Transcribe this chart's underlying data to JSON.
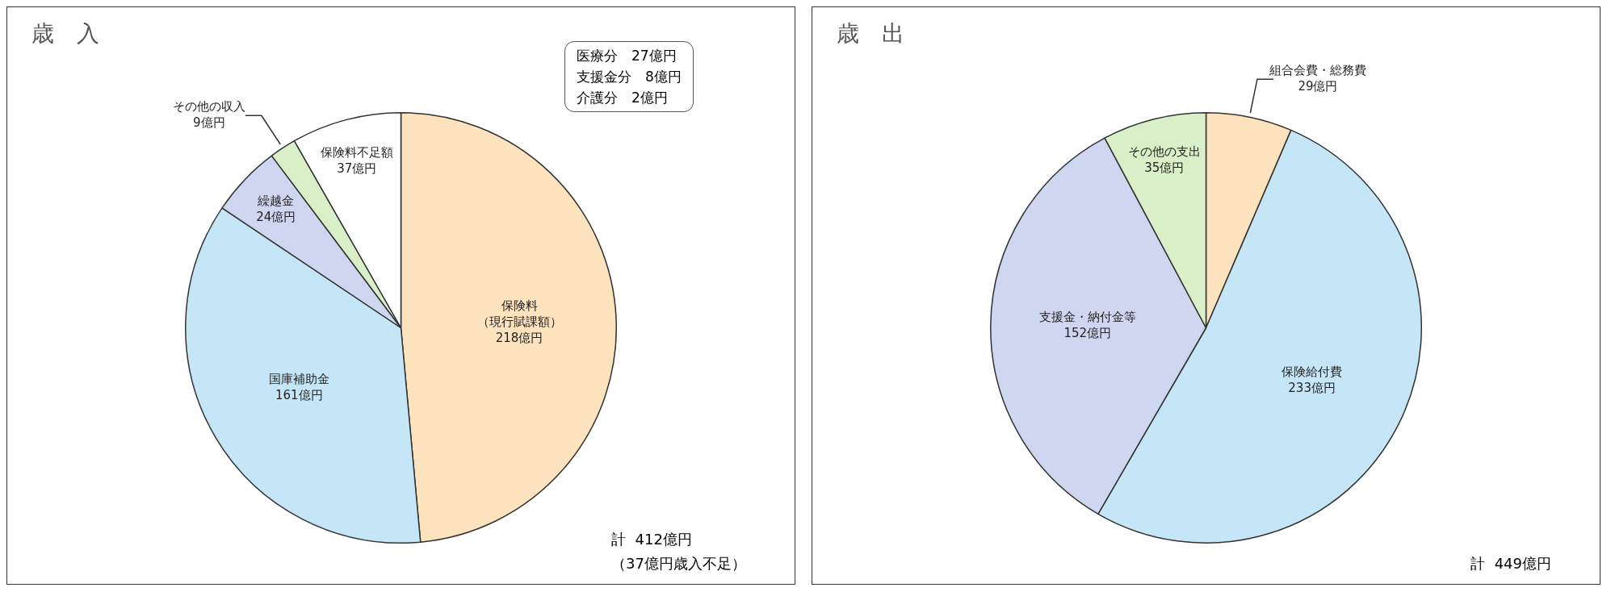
{
  "chart_data": [
    {
      "type": "pie",
      "title": "歳　入",
      "categories": [
        "保険料（現行賦課額）",
        "国庫補助金",
        "繰越金",
        "その他の収入",
        "保険料不足額"
      ],
      "values": [
        218,
        161,
        24,
        9,
        37
      ],
      "colors": [
        "#fde3bd",
        "#c5e6f7",
        "#cfd6f0",
        "#d9efc8",
        "#ffffff"
      ],
      "value_labels": [
        "218億円",
        "161億円",
        "24億円",
        "9億円",
        "37億円"
      ],
      "annotations": [
        "医療分　27億円",
        "支援金分　8億円",
        "介護分　2億円",
        "計  412億円",
        "（37億円歳入不足）"
      ]
    },
    {
      "type": "pie",
      "title": "歳　出",
      "categories": [
        "組合会費・総務費",
        "保険給付費",
        "支援金・納付金等",
        "その他の支出"
      ],
      "values": [
        29,
        233,
        152,
        35
      ],
      "colors": [
        "#fde3bd",
        "#c5e6f7",
        "#cfd6f0",
        "#d9efc8"
      ],
      "value_labels": [
        "29億円",
        "233億円",
        "152億円",
        "35億円"
      ],
      "annotations": [
        "計  449億円"
      ]
    }
  ]
}
